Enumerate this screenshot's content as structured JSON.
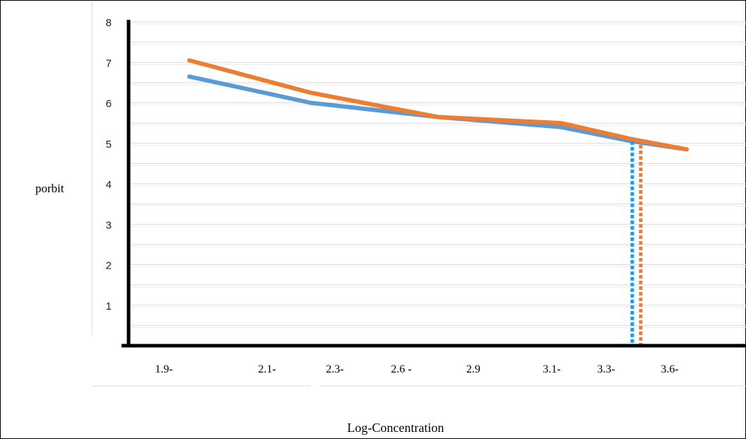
{
  "chart_data": {
    "type": "line",
    "xlabel": "Log-Concentration",
    "ylabel": "porbit",
    "ylim": [
      0,
      8
    ],
    "y_ticks": [
      "1",
      "2",
      "3",
      "4",
      "5",
      "6",
      "7",
      "8"
    ],
    "x_tick_labels": [
      "1.9-",
      "2.1-",
      "2.3-",
      "2.6 -",
      "2.9",
      "3.1-",
      "3.3-",
      "3.6-"
    ],
    "grid": "horizontal",
    "series": [
      {
        "color": "#5B9BD5",
        "points": [
          {
            "x": -1.7,
            "y": 6.65
          },
          {
            "x": -2.3,
            "y": 6.0
          },
          {
            "x": -2.9,
            "y": 5.65
          },
          {
            "x": -3.3,
            "y": 5.4
          },
          {
            "x": -3.5,
            "y": 5.05
          },
          {
            "x": -3.6,
            "y": 4.85
          }
        ]
      },
      {
        "color": "#ED7D31",
        "points": [
          {
            "x": -1.7,
            "y": 7.05
          },
          {
            "x": -2.3,
            "y": 6.25
          },
          {
            "x": -2.9,
            "y": 5.65
          },
          {
            "x": -3.3,
            "y": 5.5
          },
          {
            "x": -3.5,
            "y": 5.1
          },
          {
            "x": -3.6,
            "y": 4.85
          }
        ]
      }
    ],
    "dotted_markers": [
      {
        "color": "#1E9BE8",
        "x": -3.5,
        "y": 5.05
      },
      {
        "color": "#ED7D31",
        "x": -3.52,
        "y": 5.1
      }
    ]
  }
}
